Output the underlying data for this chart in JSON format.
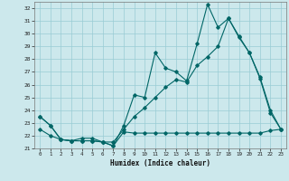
{
  "xlabel": "Humidex (Indice chaleur)",
  "xlim": [
    -0.5,
    23.5
  ],
  "ylim": [
    21,
    32.5
  ],
  "yticks": [
    21,
    22,
    23,
    24,
    25,
    26,
    27,
    28,
    29,
    30,
    31,
    32
  ],
  "xticks": [
    0,
    1,
    2,
    3,
    4,
    5,
    6,
    7,
    8,
    9,
    10,
    11,
    12,
    13,
    14,
    15,
    16,
    17,
    18,
    19,
    20,
    21,
    22,
    23
  ],
  "bg_color": "#cce8ec",
  "grid_color": "#99ccd4",
  "line_color": "#006666",
  "line_min_x": [
    0,
    1,
    2,
    3,
    4,
    5,
    6,
    7,
    8,
    9,
    10,
    11,
    12,
    13,
    14,
    15,
    16,
    17,
    18,
    19,
    20,
    21,
    22,
    23
  ],
  "line_min_y": [
    23.5,
    22.8,
    21.7,
    21.6,
    21.6,
    21.6,
    21.5,
    21.2,
    22.3,
    22.2,
    22.2,
    22.2,
    22.2,
    22.2,
    22.2,
    22.2,
    22.2,
    22.2,
    22.2,
    22.2,
    22.2,
    22.2,
    22.4,
    22.5
  ],
  "line_max_x": [
    0,
    1,
    2,
    3,
    4,
    5,
    6,
    7,
    8,
    9,
    10,
    11,
    12,
    13,
    14,
    15,
    16,
    17,
    18,
    19,
    20,
    21,
    22,
    23
  ],
  "line_max_y": [
    23.5,
    22.8,
    21.7,
    21.6,
    21.8,
    21.8,
    21.5,
    21.2,
    22.8,
    25.2,
    25.0,
    28.5,
    27.3,
    27.0,
    26.3,
    29.2,
    32.3,
    30.5,
    31.2,
    29.8,
    28.5,
    26.6,
    24.0,
    22.5
  ],
  "line_trend_x": [
    0,
    1,
    2,
    3,
    4,
    5,
    6,
    7,
    8,
    9,
    10,
    11,
    12,
    13,
    14,
    15,
    16,
    17,
    18,
    19,
    20,
    21,
    22,
    23
  ],
  "line_trend_y": [
    22.5,
    22.0,
    21.7,
    21.6,
    21.6,
    21.6,
    21.5,
    21.5,
    22.5,
    23.5,
    24.2,
    25.0,
    25.8,
    26.4,
    26.2,
    27.5,
    28.2,
    29.0,
    31.2,
    29.7,
    28.5,
    26.5,
    23.8,
    22.5
  ]
}
